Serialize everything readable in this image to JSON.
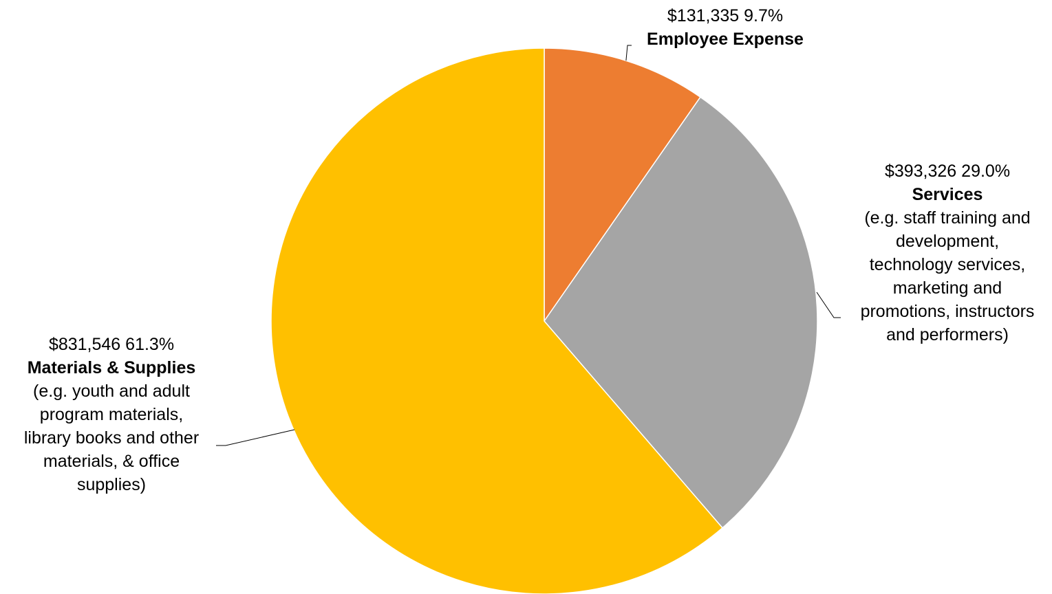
{
  "chart_data": {
    "type": "pie",
    "start_angle_deg": 0,
    "direction": "clockwise",
    "slices": [
      {
        "category": "Employee Expense",
        "amount": "$131,335",
        "value": 131335,
        "percent": "9.7%",
        "description": [],
        "color": "#ED7D31"
      },
      {
        "category": "Services",
        "amount": "$393,326",
        "value": 393326,
        "percent": "29.0%",
        "description": [
          "(e.g. staff training and",
          "development,",
          "technology services,",
          "marketing and",
          "promotions, instructors",
          "and performers)"
        ],
        "color": "#A5A5A5"
      },
      {
        "category": "Materials & Supplies",
        "amount": "$831,546",
        "value": 831546,
        "percent": "61.3%",
        "description": [
          "(e.g. youth and adult",
          "program materials,",
          "library books and other",
          "materials, & office",
          "supplies)"
        ],
        "color": "#FFC000"
      }
    ]
  }
}
